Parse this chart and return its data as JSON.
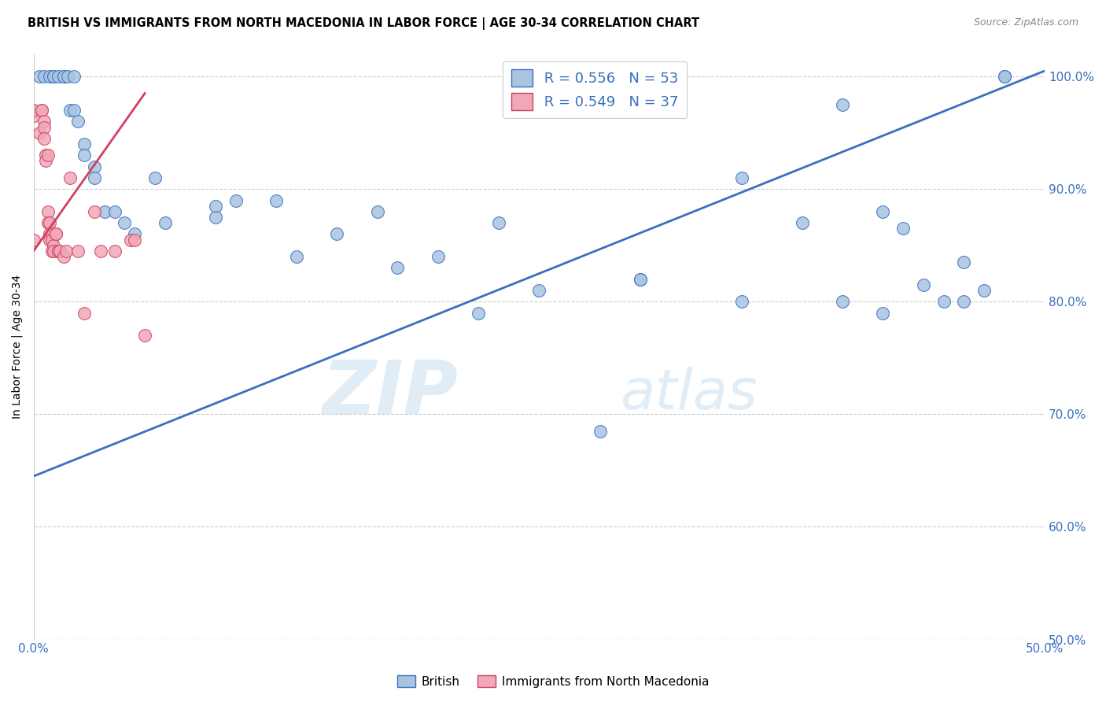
{
  "title": "BRITISH VS IMMIGRANTS FROM NORTH MACEDONIA IN LABOR FORCE | AGE 30-34 CORRELATION CHART",
  "source": "Source: ZipAtlas.com",
  "ylabel": "In Labor Force | Age 30-34",
  "xlim": [
    0.0,
    0.5
  ],
  "ylim": [
    0.5,
    1.02
  ],
  "yticks": [
    0.5,
    0.6,
    0.7,
    0.8,
    0.9,
    1.0
  ],
  "ytick_labels": [
    "50.0%",
    "60.0%",
    "70.0%",
    "80.0%",
    "90.0%",
    "100.0%"
  ],
  "xticks": [
    0.0,
    0.05,
    0.1,
    0.15,
    0.2,
    0.25,
    0.3,
    0.35,
    0.4,
    0.45,
    0.5
  ],
  "xtick_labels": [
    "0.0%",
    "",
    "",
    "",
    "",
    "",
    "",
    "",
    "",
    "",
    "50.0%"
  ],
  "blue_R": 0.556,
  "blue_N": 53,
  "pink_R": 0.549,
  "pink_N": 37,
  "blue_color": "#a8c4e0",
  "blue_line_color": "#3a6fbf",
  "pink_color": "#f0a8b8",
  "pink_line_color": "#d04060",
  "watermark_zip": "ZIP",
  "watermark_atlas": "atlas",
  "legend_label_blue": "British",
  "legend_label_pink": "Immigrants from North Macedonia",
  "blue_scatter_x": [
    0.003,
    0.005,
    0.008,
    0.01,
    0.01,
    0.012,
    0.015,
    0.015,
    0.017,
    0.018,
    0.02,
    0.02,
    0.022,
    0.025,
    0.025,
    0.03,
    0.03,
    0.035,
    0.04,
    0.045,
    0.05,
    0.06,
    0.065,
    0.09,
    0.09,
    0.1,
    0.12,
    0.13,
    0.15,
    0.17,
    0.18,
    0.2,
    0.22,
    0.23,
    0.25,
    0.28,
    0.3,
    0.35,
    0.38,
    0.4,
    0.42,
    0.43,
    0.46,
    0.48,
    0.3,
    0.35,
    0.4,
    0.42,
    0.44,
    0.45,
    0.46,
    0.47,
    0.48
  ],
  "blue_scatter_y": [
    1.0,
    1.0,
    1.0,
    1.0,
    1.0,
    1.0,
    1.0,
    1.0,
    1.0,
    0.97,
    1.0,
    0.97,
    0.96,
    0.94,
    0.93,
    0.92,
    0.91,
    0.88,
    0.88,
    0.87,
    0.86,
    0.91,
    0.87,
    0.885,
    0.875,
    0.89,
    0.89,
    0.84,
    0.86,
    0.88,
    0.83,
    0.84,
    0.79,
    0.87,
    0.81,
    0.685,
    0.82,
    0.91,
    0.87,
    0.975,
    0.88,
    0.865,
    0.835,
    1.0,
    0.82,
    0.8,
    0.8,
    0.79,
    0.815,
    0.8,
    0.8,
    0.81,
    1.0
  ],
  "pink_scatter_x": [
    0.0,
    0.0,
    0.0,
    0.003,
    0.004,
    0.004,
    0.005,
    0.005,
    0.005,
    0.006,
    0.006,
    0.007,
    0.007,
    0.007,
    0.008,
    0.008,
    0.008,
    0.009,
    0.009,
    0.01,
    0.01,
    0.011,
    0.011,
    0.012,
    0.012,
    0.013,
    0.015,
    0.016,
    0.018,
    0.022,
    0.025,
    0.03,
    0.033,
    0.04,
    0.048,
    0.05,
    0.055
  ],
  "pink_scatter_y": [
    0.965,
    0.97,
    0.855,
    0.95,
    0.97,
    0.97,
    0.96,
    0.955,
    0.945,
    0.93,
    0.925,
    0.93,
    0.88,
    0.87,
    0.87,
    0.86,
    0.855,
    0.855,
    0.845,
    0.85,
    0.845,
    0.86,
    0.86,
    0.845,
    0.845,
    0.845,
    0.84,
    0.845,
    0.91,
    0.845,
    0.79,
    0.88,
    0.845,
    0.845,
    0.855,
    0.855,
    0.77
  ],
  "blue_trend_x": [
    0.0,
    0.5
  ],
  "blue_trend_y": [
    0.645,
    1.005
  ],
  "pink_trend_x": [
    0.0,
    0.055
  ],
  "pink_trend_y": [
    0.845,
    0.985
  ]
}
